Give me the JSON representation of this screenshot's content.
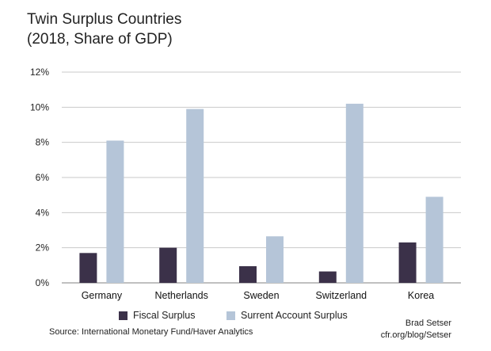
{
  "chart_data": {
    "type": "bar",
    "title": "Twin Surplus Countries",
    "subtitle": "(2018, Share of GDP)",
    "categories": [
      "Germany",
      "Netherlands",
      "Sweden",
      "Switzerland",
      "Korea"
    ],
    "series": [
      {
        "name": "Fiscal Surplus",
        "color": "#3b3149",
        "values": [
          1.7,
          2.0,
          0.95,
          0.65,
          2.3
        ]
      },
      {
        "name": "Surrent Account Surplus",
        "color": "#b5c5d8",
        "values": [
          8.1,
          9.9,
          2.65,
          10.2,
          4.9
        ]
      }
    ],
    "ylim": [
      0,
      12
    ],
    "yticks": [
      0,
      2,
      4,
      6,
      8,
      10,
      12
    ],
    "ytick_labels": [
      "0%",
      "2%",
      "4%",
      "6%",
      "8%",
      "10%",
      "12%"
    ],
    "grid": true,
    "legend_position": "bottom",
    "source": "Source: International Monetary Fund/Haver Analytics",
    "credit_line1": "Brad Setser",
    "credit_line2": "cfr.org/blog/Setser"
  }
}
